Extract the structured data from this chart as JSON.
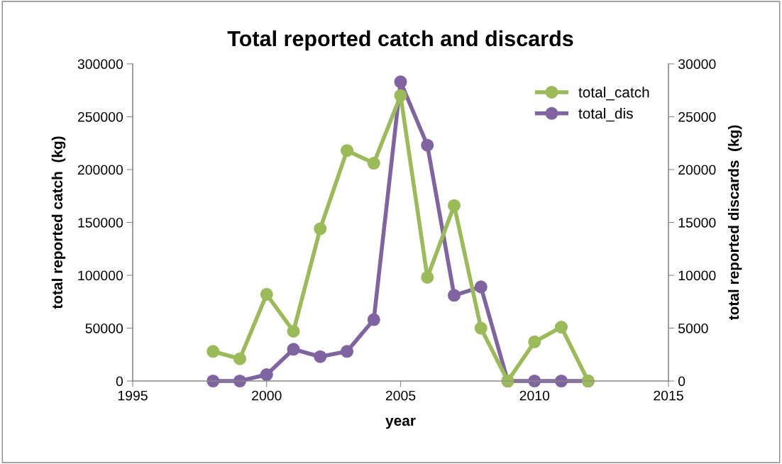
{
  "chart_data": {
    "type": "line",
    "title": "Total reported catch and discards",
    "xlabel": "year",
    "ylabel": "total reported catch  (kg)",
    "y2label": "total reported discards  (kg)",
    "x": [
      1998,
      1999,
      2000,
      2001,
      2002,
      2003,
      2004,
      2005,
      2006,
      2007,
      2008,
      2009,
      2010,
      2011,
      2012
    ],
    "series": [
      {
        "name": "total_catch",
        "color": "#9bbb59",
        "values": [
          28000,
          21000,
          82000,
          47000,
          144000,
          218000,
          206000,
          270000,
          98000,
          166000,
          50000,
          0,
          37000,
          51000,
          0
        ]
      },
      {
        "name": "total_dis",
        "color": "#8064a2",
        "axis": "y2",
        "values": [
          0,
          0,
          600,
          3000,
          2300,
          2800,
          5800,
          28300,
          22300,
          8100,
          8900,
          0,
          0,
          0,
          0
        ]
      }
    ],
    "xlim": [
      1995,
      2015
    ],
    "xticks": [
      1995,
      2000,
      2005,
      2010,
      2015
    ],
    "ylim": [
      0,
      300000
    ],
    "yticks": [
      0,
      50000,
      100000,
      150000,
      200000,
      250000,
      300000
    ],
    "y2lim": [
      0,
      30000
    ],
    "y2ticks": [
      0,
      5000,
      10000,
      15000,
      20000,
      25000,
      30000
    ],
    "marker": "circle",
    "line_style": "solid",
    "grid": false,
    "legend": "top right"
  }
}
